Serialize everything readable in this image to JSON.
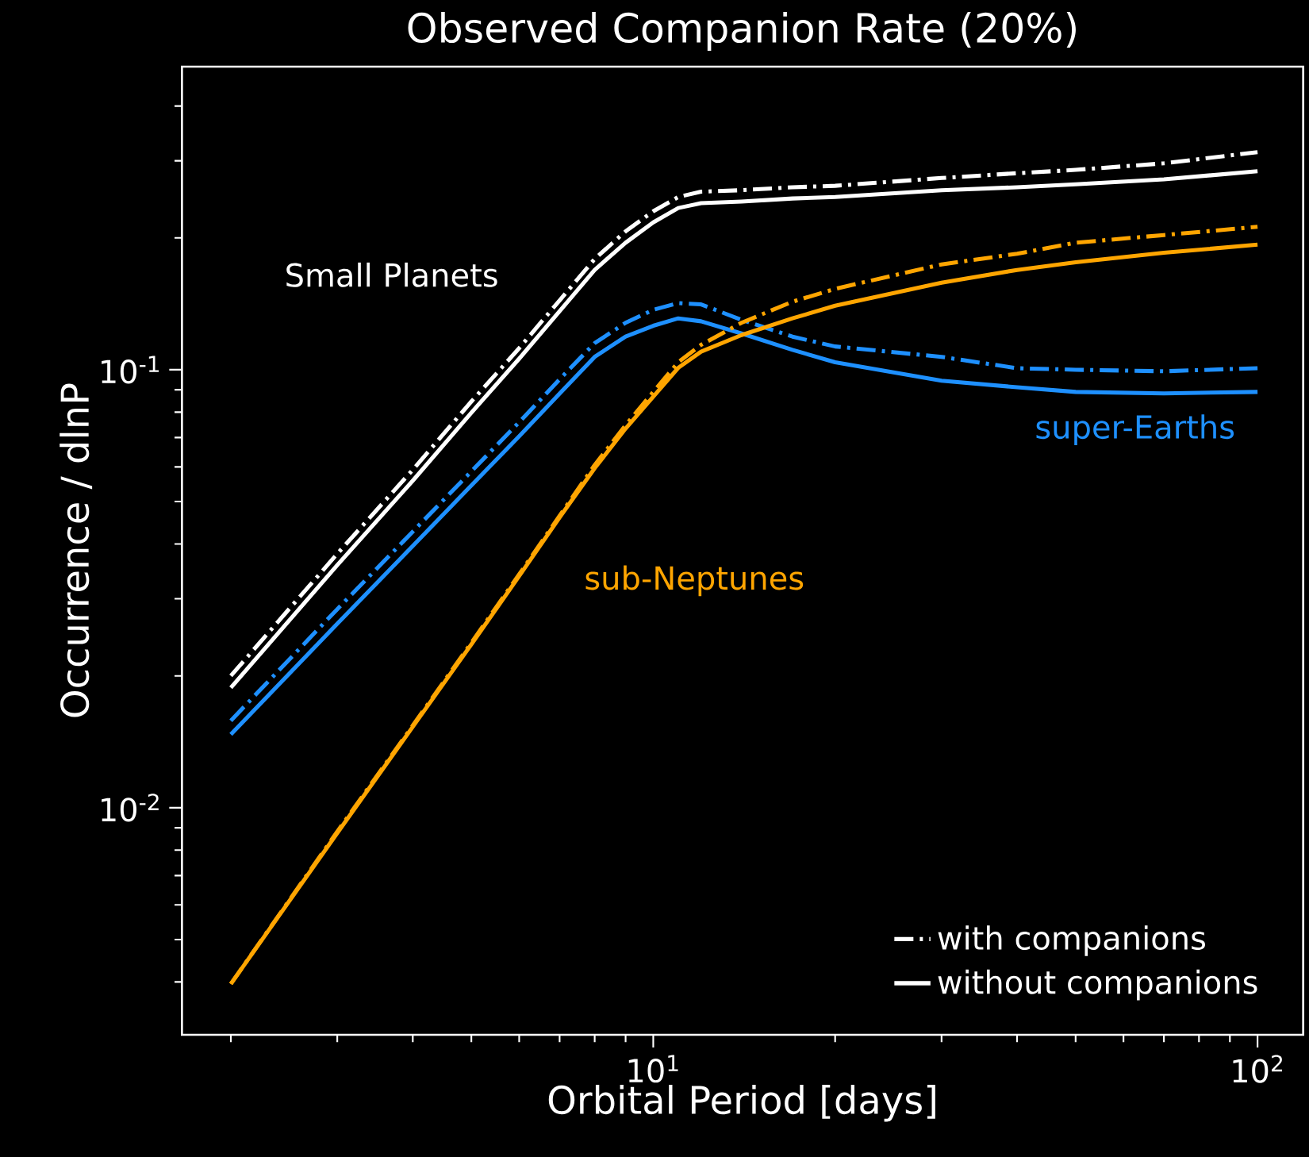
{
  "chart_data": {
    "type": "line",
    "title": "Observed Companion Rate (20%)",
    "xlabel": "Orbital Period [days]",
    "ylabel": "Occurrence / dlnP",
    "x": [
      2,
      3,
      4,
      5,
      6,
      7,
      8,
      9,
      10,
      11,
      12,
      14,
      17,
      20,
      30,
      40,
      50,
      70,
      100
    ],
    "series": [
      {
        "name": "with companions",
        "color": "#ffffff",
        "line_style": "dashdot",
        "values": [
          0.02,
          0.038,
          0.0591,
          0.0846,
          0.112,
          0.144,
          0.179,
          0.207,
          0.23,
          0.248,
          0.255,
          0.257,
          0.261,
          0.263,
          0.274,
          0.281,
          0.286,
          0.296,
          0.314
        ]
      },
      {
        "name": "without companions",
        "color": "#ffffff",
        "line_style": "solid",
        "values": [
          0.0188,
          0.0358,
          0.0558,
          0.0798,
          0.106,
          0.136,
          0.169,
          0.195,
          0.217,
          0.234,
          0.24,
          0.242,
          0.246,
          0.248,
          0.257,
          0.261,
          0.265,
          0.272,
          0.284
        ]
      },
      {
        "color": "#1e90ff",
        "line_style": "dashdot",
        "values": [
          0.0158,
          0.0284,
          0.0427,
          0.0586,
          0.0759,
          0.0951,
          0.115,
          0.128,
          0.137,
          0.142,
          0.141,
          0.13,
          0.119,
          0.113,
          0.107,
          0.1008,
          0.1,
          0.0992,
          0.1008
        ]
      },
      {
        "color": "#1e90ff",
        "line_style": "solid",
        "values": [
          0.0147,
          0.0263,
          0.0396,
          0.0544,
          0.0705,
          0.0882,
          0.107,
          0.119,
          0.126,
          0.131,
          0.129,
          0.121,
          0.111,
          0.104,
          0.0944,
          0.0912,
          0.089,
          0.0883,
          0.089
        ]
      },
      {
        "color": "#ffa500",
        "line_style": "dashdot",
        "values": [
          0.00396,
          0.00882,
          0.0154,
          0.0238,
          0.0341,
          0.0464,
          0.0606,
          0.0747,
          0.089,
          0.104,
          0.114,
          0.128,
          0.143,
          0.153,
          0.174,
          0.184,
          0.195,
          0.203,
          0.212
        ]
      },
      {
        "color": "#ffa500",
        "line_style": "solid",
        "values": [
          0.00396,
          0.00875,
          0.0153,
          0.0236,
          0.0338,
          0.046,
          0.0596,
          0.0734,
          0.0868,
          0.101,
          0.11,
          0.12,
          0.131,
          0.14,
          0.158,
          0.169,
          0.176,
          0.185,
          0.193
        ]
      }
    ],
    "annotations": [
      "Small Planets",
      "super-Earths",
      "sub-Neptunes"
    ],
    "log": "xy",
    "legend": "bottom right",
    "xlim": [
      1.66,
      119
    ],
    "ylim": [
      0.00303,
      0.492
    ],
    "xticks": [
      {
        "value": 2,
        "label": null
      },
      {
        "value": 3,
        "label": null
      },
      {
        "value": 4,
        "label": null
      },
      {
        "value": 5,
        "label": null
      },
      {
        "value": 6,
        "label": null
      },
      {
        "value": 7,
        "label": null
      },
      {
        "value": 8,
        "label": null
      },
      {
        "value": 9,
        "label": null
      },
      {
        "value": 10,
        "label": "10$^{1}$"
      },
      {
        "value": 20,
        "label": null
      },
      {
        "value": 30,
        "label": null
      },
      {
        "value": 40,
        "label": null
      },
      {
        "value": 50,
        "label": null
      },
      {
        "value": 60,
        "label": null
      },
      {
        "value": 70,
        "label": null
      },
      {
        "value": 80,
        "label": null
      },
      {
        "value": 90,
        "label": null
      },
      {
        "value": 100,
        "label": "10$^{2}$"
      }
    ],
    "yticks": [
      {
        "value": 0.004,
        "label": null
      },
      {
        "value": 0.005,
        "label": null
      },
      {
        "value": 0.006,
        "label": null
      },
      {
        "value": 0.007,
        "label": null
      },
      {
        "value": 0.008,
        "label": null
      },
      {
        "value": 0.009,
        "label": null
      },
      {
        "value": 0.01,
        "label": "10$^{-2}$"
      },
      {
        "value": 0.02,
        "label": null
      },
      {
        "value": 0.03,
        "label": null
      },
      {
        "value": 0.04,
        "label": null
      },
      {
        "value": 0.05,
        "label": null
      },
      {
        "value": 0.06,
        "label": null
      },
      {
        "value": 0.07,
        "label": null
      },
      {
        "value": 0.08,
        "label": null
      },
      {
        "value": 0.09,
        "label": null
      },
      {
        "value": 0.1,
        "label": "10$^{-1}$"
      },
      {
        "value": 0.2,
        "label": null
      },
      {
        "value": 0.3,
        "label": null
      },
      {
        "value": 0.4,
        "label": null
      }
    ]
  }
}
